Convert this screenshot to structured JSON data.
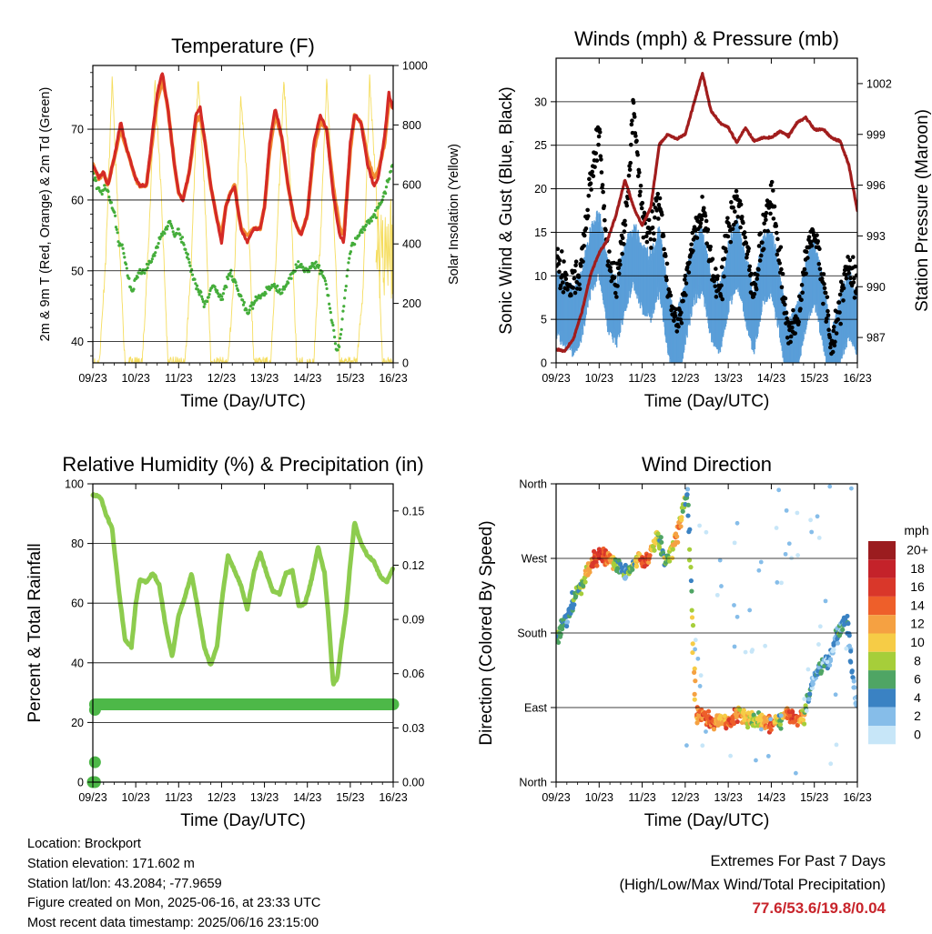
{
  "colors": {
    "temp_2m": "#d42a26",
    "temp_9m": "#f28b30",
    "dewpoint": "#44ad3a",
    "solar": "#f5dd5e",
    "wind": "#5a9ed8",
    "gust": "#000000",
    "pressure": "#a11d1d",
    "rh": "#8dcc4e",
    "precip": "#4db848",
    "extremes": "#c8242b"
  },
  "time_ticks": [
    "09/23",
    "10/23",
    "11/23",
    "12/23",
    "13/23",
    "14/23",
    "15/23",
    "16/23"
  ],
  "info": {
    "location": "Location: Brockport",
    "elevation": "Station elevation: 171.602 m",
    "latlon": "Station lat/lon: 43.2084; -77.9659",
    "created": "Figure created on Mon, 2025-06-16, at 23:33 UTC",
    "recent": "Most recent data timestamp: 2025/06/16 23:15:00"
  },
  "extremes": {
    "title": "Extremes For Past 7 Days",
    "subtitle": "(High/Low/Max Wind/Total Precipitation)",
    "values": "77.6/53.6/19.8/0.04"
  },
  "chart_data": [
    {
      "type": "line",
      "title": "Temperature (F)",
      "xlabel": "Time (Day/UTC)",
      "ylabel": "2m & 9m T (Red, Orange) & 2m Td (Green)",
      "y2label": "Solar Insolation (Yellow)",
      "xlim": [
        0,
        7
      ],
      "ylim": [
        37,
        79
      ],
      "y_ticks": [
        40,
        50,
        60,
        70
      ],
      "y2lim": [
        0,
        1000
      ],
      "y2_ticks": [
        0,
        200,
        400,
        600,
        800,
        1000
      ],
      "series": [
        {
          "color": "red",
          "x": [
            0,
            0.15,
            0.25,
            0.35,
            0.5,
            0.65,
            0.8,
            0.9,
            1.0,
            1.1,
            1.25,
            1.4,
            1.5,
            1.62,
            1.75,
            1.9,
            2.0,
            2.1,
            2.25,
            2.4,
            2.5,
            2.62,
            2.75,
            2.9,
            3.0,
            3.1,
            3.2,
            3.3,
            3.45,
            3.6,
            3.75,
            3.9,
            4.0,
            4.12,
            4.25,
            4.4,
            4.55,
            4.7,
            4.85,
            5.0,
            5.15,
            5.3,
            5.45,
            5.6,
            5.75,
            5.85,
            6.0,
            6.1,
            6.25,
            6.4,
            6.55,
            6.65,
            6.8,
            6.9,
            7.0
          ],
          "values": [
            65,
            63,
            64,
            62,
            66,
            71,
            67,
            65,
            63,
            62,
            62,
            70,
            75,
            78,
            73,
            65,
            61,
            60,
            64,
            72,
            73,
            68,
            62,
            57,
            54,
            59,
            61,
            62,
            56,
            54,
            56,
            56,
            59,
            68,
            73,
            69,
            62,
            57,
            55,
            58,
            68,
            72,
            70,
            61,
            55,
            54,
            68,
            72,
            71,
            65,
            62,
            63,
            69,
            75,
            73
          ]
        },
        {
          "color": "orange",
          "x": [
            0,
            0.15,
            0.25,
            0.35,
            0.5,
            0.65,
            0.8,
            0.9,
            1.0,
            1.1,
            1.25,
            1.4,
            1.5,
            1.62,
            1.75,
            1.9,
            2.0,
            2.1,
            2.25,
            2.4,
            2.5,
            2.62,
            2.75,
            2.9,
            3.0,
            3.1,
            3.2,
            3.3,
            3.45,
            3.6,
            3.75,
            3.9,
            4.0,
            4.12,
            4.25,
            4.4,
            4.55,
            4.7,
            4.85,
            5.0,
            5.15,
            5.3,
            5.45,
            5.6,
            5.75,
            5.85,
            6.0,
            6.1,
            6.25,
            6.4,
            6.55,
            6.65,
            6.8,
            6.9,
            7.0
          ],
          "values": [
            65,
            63,
            64,
            62,
            66,
            70,
            67,
            65,
            63,
            62,
            62,
            69,
            74,
            77,
            73,
            65,
            61,
            60,
            64,
            71,
            72,
            68,
            62,
            57,
            55,
            59,
            61,
            62,
            56,
            55,
            56,
            56,
            59,
            67,
            72,
            69,
            62,
            57,
            55,
            58,
            67,
            71,
            70,
            62,
            56,
            55,
            67,
            72,
            71,
            66,
            63,
            64,
            68,
            74,
            73
          ]
        },
        {
          "color": "green",
          "x": [
            0,
            0.1,
            0.2,
            0.3,
            0.4,
            0.5,
            0.6,
            0.7,
            0.8,
            0.9,
            1.0,
            1.1,
            1.2,
            1.4,
            1.6,
            1.8,
            1.9,
            2.0,
            2.1,
            2.2,
            2.3,
            2.4,
            2.5,
            2.6,
            2.8,
            3.0,
            3.2,
            3.4,
            3.6,
            3.8,
            4.0,
            4.2,
            4.4,
            4.6,
            4.8,
            5.0,
            5.2,
            5.4,
            5.5,
            5.6,
            5.7,
            5.8,
            5.9,
            6.0,
            6.2,
            6.4,
            6.6,
            6.8,
            7.0
          ],
          "values": [
            64,
            62,
            61,
            62,
            60,
            58,
            54,
            53,
            50,
            47,
            49,
            50,
            50,
            52,
            55,
            57,
            55,
            56,
            54,
            52,
            50,
            48,
            47,
            45,
            48,
            46,
            50,
            47,
            44,
            46,
            47,
            48,
            47,
            49,
            51,
            50,
            51,
            49,
            46,
            42,
            38,
            42,
            48,
            53,
            55,
            57,
            58,
            61,
            65
          ]
        },
        {
          "color": "yellow",
          "axis": "y2",
          "x": [
            0,
            0.15,
            0.3,
            0.45,
            0.6,
            0.75,
            1.0,
            1.15,
            1.3,
            1.45,
            1.6,
            1.75,
            2.0,
            2.15,
            2.3,
            2.45,
            2.6,
            2.75,
            3.0,
            3.15,
            3.3,
            3.45,
            3.6,
            3.75,
            4.0,
            4.15,
            4.3,
            4.45,
            4.6,
            4.75,
            5.0,
            5.15,
            5.3,
            5.45,
            5.6,
            5.75,
            6.0,
            6.15,
            6.3,
            6.45,
            6.6,
            6.75,
            7.0
          ],
          "values": [
            0,
            0,
            350,
            950,
            450,
            0,
            0,
            0,
            400,
            950,
            550,
            0,
            0,
            0,
            350,
            950,
            600,
            0,
            0,
            0,
            300,
            900,
            600,
            0,
            0,
            0,
            450,
            950,
            600,
            0,
            0,
            0,
            400,
            950,
            550,
            0,
            0,
            0,
            250,
            950,
            600,
            0,
            0
          ]
        }
      ]
    },
    {
      "type": "line",
      "title": "Winds (mph) & Pressure (mb)",
      "xlabel": "Time (Day/UTC)",
      "ylabel": "Sonic Wind & Gust (Blue, Black)",
      "y2label": "Station Pressure (Maroon)",
      "xlim": [
        0,
        7
      ],
      "ylim": [
        0,
        35
      ],
      "y_ticks": [
        0,
        5,
        10,
        15,
        20,
        25,
        30
      ],
      "y2lim": [
        985.5,
        1003.5
      ],
      "y2_ticks": [
        987,
        990,
        993,
        996,
        999,
        1002
      ],
      "series": [
        {
          "color": "blue",
          "x": [
            0,
            0.2,
            0.4,
            0.6,
            0.8,
            1.0,
            1.2,
            1.4,
            1.6,
            1.8,
            2.0,
            2.2,
            2.4,
            2.6,
            2.8,
            3.0,
            3.2,
            3.4,
            3.6,
            3.8,
            4.0,
            4.2,
            4.4,
            4.6,
            4.8,
            5.0,
            5.2,
            5.4,
            5.6,
            5.8,
            6.0,
            6.2,
            6.4,
            6.6,
            6.8,
            7.0
          ],
          "values": [
            7,
            6,
            5,
            7,
            12,
            14,
            8,
            6,
            10,
            13,
            10,
            9,
            12,
            5,
            2,
            6,
            11,
            12,
            7,
            5,
            10,
            13,
            9,
            5,
            11,
            12,
            7,
            1,
            3,
            8,
            11,
            6,
            0,
            4,
            7,
            5
          ]
        },
        {
          "color": "black",
          "x": [
            0,
            0.2,
            0.4,
            0.6,
            0.8,
            1.0,
            1.2,
            1.4,
            1.6,
            1.8,
            2.0,
            2.2,
            2.4,
            2.6,
            2.8,
            3.0,
            3.2,
            3.4,
            3.6,
            3.8,
            4.0,
            4.2,
            4.4,
            4.6,
            4.8,
            5.0,
            5.2,
            5.4,
            5.6,
            5.8,
            6.0,
            6.2,
            6.4,
            6.6,
            6.8,
            7.0
          ],
          "values": [
            11,
            10,
            9,
            12,
            20,
            26,
            12,
            9,
            15,
            29,
            17,
            15,
            19,
            9,
            4,
            9,
            15,
            18,
            12,
            8,
            15,
            19,
            14,
            8,
            15,
            19,
            12,
            3,
            5,
            12,
            15,
            9,
            2,
            7,
            11,
            9
          ]
        },
        {
          "color": "maroon",
          "axis": "y2",
          "x": [
            0,
            0.2,
            0.4,
            0.6,
            0.8,
            1.0,
            1.2,
            1.4,
            1.6,
            1.8,
            2.0,
            2.2,
            2.4,
            2.6,
            2.8,
            3.0,
            3.2,
            3.4,
            3.6,
            3.8,
            4.0,
            4.2,
            4.4,
            4.6,
            4.8,
            5.0,
            5.2,
            5.4,
            5.6,
            5.8,
            6.0,
            6.2,
            6.4,
            6.6,
            6.8,
            7.0
          ],
          "values": [
            986.3,
            986.2,
            986.9,
            988.5,
            990.7,
            992,
            992.8,
            994.3,
            996.3,
            994.7,
            993.6,
            994.7,
            998.4,
            999,
            998.7,
            999,
            1000.8,
            1002.6,
            1000.4,
            999.7,
            999.4,
            998.5,
            999.4,
            998.6,
            998.8,
            998.8,
            999.2,
            998.9,
            999.7,
            1000,
            999.3,
            999.3,
            998.8,
            998.6,
            997.2,
            994.5
          ]
        }
      ]
    },
    {
      "type": "line",
      "title": "Relative Humidity (%) & Precipitation (in)",
      "xlabel": "Time (Day/UTC)",
      "ylabel": "Percent & Total Rainfall",
      "xlim": [
        0,
        7
      ],
      "ylim": [
        0,
        100
      ],
      "y_ticks": [
        0,
        20,
        40,
        60,
        80,
        100
      ],
      "y2lim": [
        0,
        0.165
      ],
      "y2_ticks": [
        "0.00",
        "0.03",
        "0.06",
        "0.09",
        "0.12",
        "0.15"
      ],
      "series": [
        {
          "color": "rh",
          "x": [
            0,
            0.1,
            0.2,
            0.3,
            0.45,
            0.6,
            0.75,
            0.9,
            1.0,
            1.1,
            1.25,
            1.4,
            1.55,
            1.7,
            1.85,
            2.0,
            2.15,
            2.3,
            2.45,
            2.6,
            2.75,
            2.9,
            3.0,
            3.15,
            3.3,
            3.45,
            3.6,
            3.75,
            3.9,
            4.05,
            4.2,
            4.35,
            4.5,
            4.65,
            4.8,
            4.95,
            5.1,
            5.25,
            5.4,
            5.5,
            5.6,
            5.7,
            5.8,
            5.9,
            6.0,
            6.1,
            6.25,
            6.4,
            6.55,
            6.7,
            6.85,
            7.0
          ],
          "values": [
            96,
            96,
            95,
            90,
            85,
            65,
            48,
            45,
            60,
            68,
            67,
            70,
            66,
            52,
            42,
            56,
            62,
            70,
            58,
            45,
            39,
            46,
            60,
            76,
            71,
            66,
            58,
            70,
            77,
            70,
            64,
            63,
            70,
            71,
            59,
            60,
            68,
            79,
            70,
            54,
            33,
            35,
            47,
            57,
            73,
            87,
            80,
            76,
            74,
            69,
            67,
            72
          ]
        },
        {
          "color": "precip",
          "marker": "line",
          "axis": "y2",
          "x": [
            0.05,
            7
          ],
          "values": [
            0.043,
            0.043
          ]
        },
        {
          "color": "precip",
          "marker": "point",
          "axis": "y2",
          "x": [
            0,
            0.05,
            0.05,
            0.05
          ],
          "values": [
            0,
            0,
            0.011,
            0.04
          ]
        }
      ]
    },
    {
      "type": "scatter",
      "title": "Wind Direction",
      "xlabel": "Time (Day/UTC)",
      "ylabel": "Direction (Colored By Speed)",
      "xlim": [
        0,
        7
      ],
      "ylim": [
        0,
        360
      ],
      "y_tick_labels": [
        "North",
        "East",
        "South",
        "West",
        "North"
      ],
      "legend": {
        "title": "mph",
        "labels": [
          "20+",
          "18",
          "16",
          "14",
          "12",
          "10",
          "8",
          "6",
          "4",
          "2",
          "0"
        ],
        "colors": [
          "#9b1c1f",
          "#c4222a",
          "#d9372a",
          "#ee5f2a",
          "#f5a142",
          "#f6cc46",
          "#a6ce3a",
          "#4fa564",
          "#3a82c3",
          "#86bde9",
          "#c7e6f8"
        ]
      },
      "series": [
        {
          "name": "wind-direction",
          "x": [
            0.05,
            0.25,
            0.45,
            0.65,
            0.85,
            1.05,
            1.25,
            1.45,
            1.65,
            1.85,
            2.05,
            2.2,
            2.35,
            2.55,
            2.7,
            2.85,
            3.05,
            3.25,
            3.45,
            3.65,
            3.85,
            4.05,
            4.25,
            4.45,
            4.65,
            4.85,
            5.05,
            5.2,
            5.35,
            5.55,
            5.75,
            5.95,
            6.15,
            6.35,
            6.55,
            6.75,
            6.95
          ],
          "values": [
            180,
            200,
            225,
            245,
            265,
            275,
            270,
            260,
            250,
            268,
            270,
            276,
            300,
            265,
            280,
            305,
            350,
            80,
            80,
            70,
            75,
            75,
            85,
            75,
            75,
            70,
            70,
            75,
            85,
            75,
            80,
            120,
            140,
            150,
            180,
            195,
            100
          ],
          "speed": [
            6,
            4,
            6,
            8,
            14,
            16,
            12,
            6,
            4,
            8,
            16,
            12,
            8,
            6,
            10,
            12,
            4,
            12,
            14,
            14,
            10,
            16,
            12,
            10,
            8,
            12,
            14,
            6,
            12,
            16,
            10,
            2,
            4,
            2,
            4,
            4,
            2
          ]
        }
      ]
    }
  ]
}
